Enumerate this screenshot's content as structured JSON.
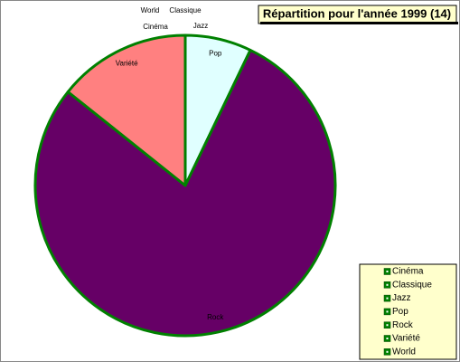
{
  "chart_data": {
    "type": "pie",
    "title": "Répartition pour l'année 1999 (14)",
    "categories": [
      "Cinéma",
      "Classique",
      "Jazz",
      "Pop",
      "Rock",
      "Variété",
      "World"
    ],
    "values": [
      0,
      0,
      0,
      1,
      11,
      2,
      0
    ],
    "colors": [
      null,
      null,
      null,
      "#e0ffff",
      "#660066",
      "#ff8080",
      null
    ],
    "edge_color": "#008000",
    "legend": "bottom-right"
  }
}
